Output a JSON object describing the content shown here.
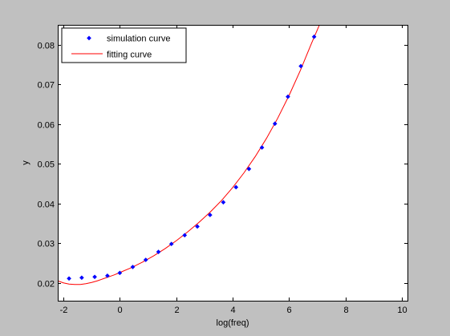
{
  "chart_data": {
    "type": "scatter",
    "title": "",
    "xlabel": "log(freq)",
    "ylabel": "y",
    "xlim": [
      -2.2,
      10.2
    ],
    "ylim": [
      0.0155,
      0.085
    ],
    "xticks": [
      -2,
      0,
      2,
      4,
      6,
      8,
      10
    ],
    "yticks": [
      0.02,
      0.03,
      0.04,
      0.05,
      0.06,
      0.07,
      0.08
    ],
    "xtick_labels": [
      "-2",
      "0",
      "2",
      "4",
      "6",
      "8",
      "10"
    ],
    "ytick_labels": [
      "0.02",
      "0.03",
      "0.04",
      "0.05",
      "0.06",
      "0.07",
      "0.08"
    ],
    "grid": false,
    "legend_position": "top-left",
    "colors": {
      "figure_background": "#c0c0c0",
      "axes_background": "#ffffff",
      "simulation": "#0000ff",
      "fitting": "#ff0000"
    },
    "series": [
      {
        "name": "simulation curve",
        "style": "markers",
        "x": [
          -1.8,
          -1.35,
          -0.89,
          -0.44,
          0.0,
          0.46,
          0.92,
          1.37,
          1.83,
          2.3,
          2.75,
          3.2,
          3.67,
          4.12,
          4.58,
          5.04,
          5.5,
          5.96,
          6.42,
          6.89
        ],
        "y": [
          0.0211,
          0.0213,
          0.0215,
          0.0218,
          0.0225,
          0.024,
          0.0258,
          0.0278,
          0.0298,
          0.032,
          0.0342,
          0.0371,
          0.0403,
          0.0441,
          0.0487,
          0.0541,
          0.0601,
          0.0669,
          0.0746,
          0.082
        ]
      },
      {
        "name": "fitting curve",
        "style": "line",
        "x": [
          -2.2,
          -2.0,
          -1.8,
          -1.6,
          -1.4,
          -1.2,
          -1.0,
          -0.8,
          -0.6,
          -0.4,
          -0.2,
          0.0,
          0.4,
          0.8,
          1.2,
          1.6,
          2.0,
          2.4,
          2.8,
          3.2,
          3.6,
          4.0,
          4.4,
          4.8,
          5.2,
          5.6,
          6.0,
          6.4,
          6.8,
          7.2,
          7.3
        ],
        "y": [
          0.0205,
          0.02,
          0.0197,
          0.0196,
          0.0196,
          0.0198,
          0.0201,
          0.0205,
          0.021,
          0.0215,
          0.022,
          0.0226,
          0.0238,
          0.0252,
          0.0268,
          0.0286,
          0.0306,
          0.0328,
          0.0352,
          0.0378,
          0.0407,
          0.044,
          0.0477,
          0.0518,
          0.0564,
          0.0615,
          0.0672,
          0.0735,
          0.0804,
          0.087,
          0.0885
        ]
      }
    ]
  }
}
